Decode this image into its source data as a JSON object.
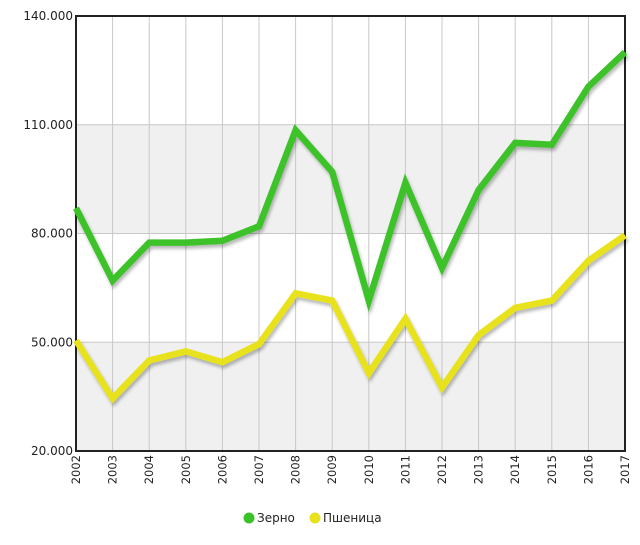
{
  "chart_data": {
    "type": "line",
    "title": "",
    "xlabel": "",
    "ylabel": "",
    "x": [
      "2002",
      "2003",
      "2004",
      "2005",
      "2006",
      "2007",
      "2008",
      "2009",
      "2010",
      "2011",
      "2012",
      "2013",
      "2014",
      "2015",
      "2016",
      "2017"
    ],
    "ylim": [
      20000,
      140000
    ],
    "y_ticks": [
      20000,
      50000,
      80000,
      110000,
      140000
    ],
    "y_tick_labels": [
      "20.000",
      "50.000",
      "80.000",
      "110.000",
      "140.000"
    ],
    "grid": true,
    "legend_position": "bottom-center",
    "series": [
      {
        "name": "Зерно",
        "color": "#3cc229",
        "values": [
          87000,
          67000,
          77500,
          77500,
          78000,
          82000,
          108500,
          97000,
          61500,
          94000,
          70500,
          92000,
          105000,
          104500,
          120500,
          130000
        ]
      },
      {
        "name": "Пшеница",
        "color": "#e8e21c",
        "values": [
          50500,
          34500,
          45000,
          47500,
          44500,
          49500,
          63500,
          61500,
          41500,
          56500,
          37500,
          52000,
          59500,
          61500,
          72500,
          79500
        ]
      }
    ]
  }
}
